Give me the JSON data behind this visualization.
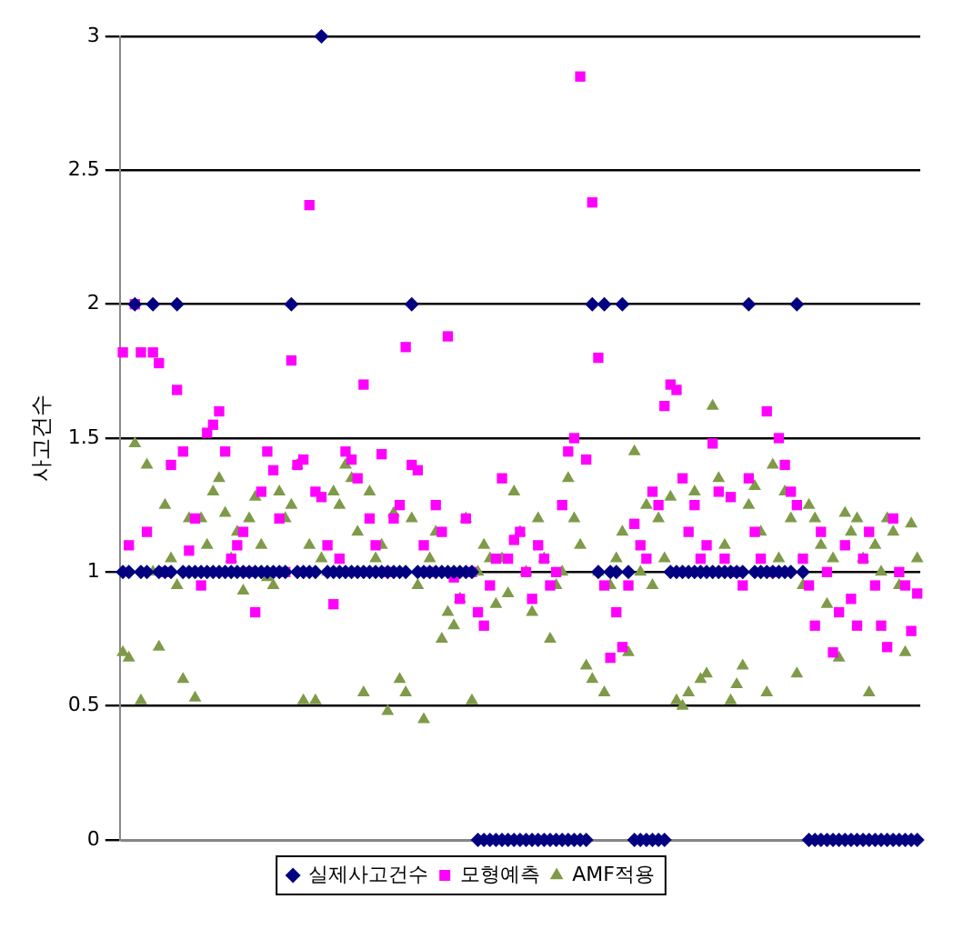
{
  "chart_data": {
    "type": "scatter",
    "ylabel": "사고건수",
    "categories": [
      null,
      null,
      null,
      null,
      null,
      null,
      null,
      null,
      null,
      null,
      null,
      null,
      null,
      null,
      null,
      null,
      null,
      null,
      null,
      null,
      null,
      null,
      null,
      null,
      null,
      null,
      null,
      null,
      null,
      null,
      null,
      null,
      null,
      null,
      null,
      null,
      null,
      null,
      null,
      null,
      null,
      null,
      null,
      null,
      null,
      null,
      null,
      null,
      null,
      null,
      null,
      null,
      null,
      null,
      null,
      null,
      null,
      null,
      null,
      null,
      null,
      null,
      null,
      null,
      null,
      null,
      null,
      null,
      null,
      null,
      null,
      null,
      null,
      null,
      null,
      null,
      null,
      null,
      null,
      null,
      null,
      null,
      null,
      null,
      null,
      null,
      null,
      null,
      null,
      null,
      null,
      null,
      null,
      null,
      null,
      null,
      null,
      null,
      null,
      null,
      null,
      null,
      null,
      null,
      null,
      null,
      null,
      null,
      null,
      null,
      null,
      null,
      null,
      null,
      null,
      null,
      null,
      null,
      null,
      null,
      null,
      null,
      null,
      null,
      null,
      null,
      null,
      null,
      null,
      null,
      null,
      null,
      null
    ],
    "series": [
      {
        "name": "실제사고건수",
        "color": "#000080",
        "marker": "diamond",
        "values": [
          1,
          1,
          2,
          1,
          1,
          2,
          1,
          1,
          1,
          2,
          1,
          1,
          1,
          1,
          1,
          1,
          1,
          1,
          1,
          1,
          1,
          1,
          1,
          1,
          1,
          1,
          1,
          1,
          2,
          1,
          1,
          1,
          1,
          3,
          1,
          1,
          1,
          1,
          1,
          1,
          1,
          1,
          1,
          1,
          1,
          1,
          1,
          1,
          2,
          1,
          1,
          1,
          1,
          1,
          1,
          1,
          1,
          1,
          1,
          0,
          0,
          0,
          0,
          0,
          0,
          0,
          0,
          0,
          0,
          0,
          0,
          0,
          0,
          0,
          0,
          0,
          0,
          0,
          2,
          1,
          2,
          1,
          1,
          2,
          1,
          0,
          0,
          0,
          0,
          0,
          0,
          1,
          1,
          1,
          1,
          1,
          1,
          1,
          1,
          1,
          1,
          1,
          1,
          1,
          2,
          1,
          1,
          1,
          1,
          1,
          1,
          1,
          2,
          1,
          0,
          0,
          0,
          0,
          0,
          0,
          0,
          0,
          0,
          0,
          0,
          0,
          0,
          0,
          0,
          0,
          0,
          0,
          0
        ]
      },
      {
        "name": "모형예측",
        "color": "#ff00ff",
        "marker": "square",
        "values": [
          1.82,
          1.1,
          2.0,
          1.82,
          1.15,
          1.82,
          1.78,
          1.0,
          1.4,
          1.68,
          1.45,
          1.08,
          1.2,
          0.95,
          1.52,
          1.55,
          1.6,
          1.45,
          1.05,
          1.1,
          1.15,
          1.0,
          0.85,
          1.3,
          1.45,
          1.38,
          1.2,
          1.0,
          1.79,
          1.4,
          1.42,
          2.37,
          1.3,
          1.28,
          1.1,
          0.88,
          1.05,
          1.45,
          1.42,
          1.35,
          1.7,
          1.2,
          1.1,
          1.44,
          1.0,
          1.2,
          1.25,
          1.84,
          1.4,
          1.38,
          1.1,
          1.0,
          1.25,
          1.15,
          1.88,
          0.98,
          0.9,
          1.2,
          1.0,
          0.85,
          0.8,
          0.95,
          1.05,
          1.35,
          1.05,
          1.12,
          1.15,
          1.0,
          0.9,
          1.1,
          1.05,
          0.95,
          1.0,
          1.25,
          1.45,
          1.5,
          2.85,
          1.42,
          2.38,
          1.8,
          0.95,
          0.68,
          0.85,
          0.72,
          0.95,
          1.18,
          1.1,
          1.05,
          1.3,
          1.25,
          1.62,
          1.7,
          1.68,
          1.35,
          1.15,
          1.25,
          1.05,
          1.1,
          1.48,
          1.3,
          1.05,
          1.28,
          1.0,
          0.95,
          1.35,
          1.15,
          1.05,
          1.6,
          1.0,
          1.5,
          1.4,
          1.3,
          1.25,
          1.05,
          0.95,
          0.8,
          1.15,
          1.0,
          0.7,
          0.85,
          1.1,
          0.9,
          0.8,
          1.05,
          1.15,
          0.95,
          0.8,
          0.72,
          1.2,
          1.0,
          0.95,
          0.78,
          0.92
        ]
      },
      {
        "name": "AMF적용",
        "color": "#7f9a48",
        "marker": "triangle",
        "values": [
          0.7,
          0.68,
          1.48,
          0.52,
          1.4,
          1.0,
          0.72,
          1.25,
          1.05,
          0.95,
          0.6,
          1.2,
          0.53,
          1.2,
          1.1,
          1.3,
          1.35,
          1.22,
          1.05,
          1.15,
          0.93,
          1.2,
          1.28,
          1.1,
          0.98,
          0.95,
          1.3,
          1.2,
          1.25,
          1.4,
          0.52,
          1.1,
          0.52,
          1.05,
          1.0,
          1.3,
          1.25,
          1.4,
          1.35,
          1.15,
          0.55,
          1.3,
          1.05,
          1.1,
          0.48,
          1.22,
          0.6,
          0.55,
          1.2,
          0.95,
          0.45,
          1.05,
          1.15,
          0.75,
          0.85,
          0.8,
          0.9,
          1.2,
          0.52,
          1.0,
          1.1,
          1.05,
          0.88,
          1.05,
          0.92,
          1.3,
          1.15,
          1.0,
          0.85,
          1.2,
          1.05,
          0.75,
          0.95,
          1.0,
          1.35,
          1.2,
          1.1,
          0.65,
          0.6,
          1.0,
          0.55,
          0.95,
          1.05,
          1.15,
          0.7,
          1.45,
          1.0,
          1.25,
          0.95,
          1.2,
          1.05,
          1.28,
          0.52,
          0.5,
          0.55,
          1.3,
          0.6,
          0.62,
          1.62,
          1.35,
          1.1,
          0.52,
          0.58,
          0.65,
          1.25,
          1.32,
          1.15,
          0.55,
          1.4,
          1.05,
          1.3,
          1.2,
          0.62,
          0.95,
          1.25,
          1.2,
          1.1,
          0.88,
          1.05,
          0.68,
          1.22,
          1.15,
          1.2,
          1.05,
          0.55,
          1.1,
          1.0,
          1.2,
          1.15,
          0.95,
          0.7,
          1.18,
          1.05
        ]
      }
    ],
    "ylim": [
      0,
      3
    ],
    "yticks": [
      0,
      0.5,
      1,
      1.5,
      2,
      2.5,
      3
    ],
    "grid": "y",
    "legend": "bottom"
  }
}
